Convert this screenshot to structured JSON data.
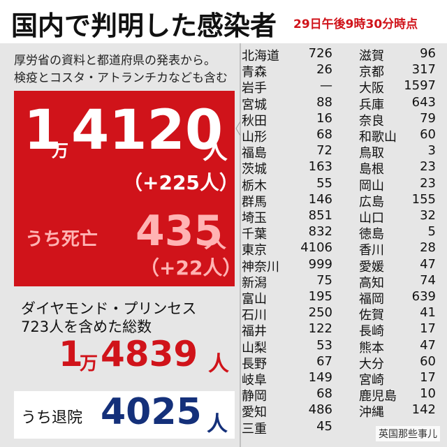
{
  "header": {
    "title": "国内で判明した感染者",
    "timestamp": "29日午後9時30分時点"
  },
  "note": [
    "厚労省の資料と都道府県の発表から。",
    "検疫とコスタ・アトランチカなども含む"
  ],
  "total": {
    "parts": [
      "1",
      "万",
      "4120",
      "人"
    ],
    "change": "（+225人）"
  },
  "deaths": {
    "label": "うち死亡",
    "parts": [
      "435",
      "人"
    ],
    "change": "（+22人）"
  },
  "ship": {
    "lines": [
      "ダイヤモンド・プリンセス",
      "723人を含めた総数"
    ],
    "parts": [
      "1",
      "万",
      "4839",
      "人"
    ]
  },
  "recovered": {
    "label": "うち退院",
    "parts": [
      "4025",
      "人"
    ]
  },
  "prefectures": [
    [
      [
        "北海道",
        "726"
      ],
      [
        "青森",
        "26"
      ],
      [
        "岩手",
        "—"
      ],
      [
        "宮城",
        "88"
      ],
      [
        "秋田",
        "16"
      ],
      [
        "山形",
        "68"
      ],
      [
        "福島",
        "72"
      ],
      [
        "茨城",
        "163"
      ],
      [
        "栃木",
        "55"
      ],
      [
        "群馬",
        "146"
      ],
      [
        "埼玉",
        "851"
      ],
      [
        "千葉",
        "832"
      ],
      [
        "東京",
        "4106"
      ],
      [
        "神奈川",
        "999"
      ],
      [
        "新潟",
        "75"
      ],
      [
        "富山",
        "195"
      ],
      [
        "石川",
        "250"
      ],
      [
        "福井",
        "122"
      ],
      [
        "山梨",
        "53"
      ],
      [
        "長野",
        "67"
      ],
      [
        "岐阜",
        "149"
      ],
      [
        "静岡",
        "68"
      ],
      [
        "愛知",
        "486"
      ],
      [
        "三重",
        "45"
      ]
    ],
    [
      [
        "滋賀",
        "96"
      ],
      [
        "京都",
        "317"
      ],
      [
        "大阪",
        "1597"
      ],
      [
        "兵庫",
        "643"
      ],
      [
        "奈良",
        "79"
      ],
      [
        "和歌山",
        "60"
      ],
      [
        "鳥取",
        "3"
      ],
      [
        "島根",
        "23"
      ],
      [
        "岡山",
        "23"
      ],
      [
        "広島",
        "155"
      ],
      [
        "山口",
        "32"
      ],
      [
        "徳島",
        "5"
      ],
      [
        "香川",
        "28"
      ],
      [
        "愛媛",
        "47"
      ],
      [
        "高知",
        "74"
      ],
      [
        "福岡",
        "639"
      ],
      [
        "佐賀",
        "41"
      ],
      [
        "長崎",
        "17"
      ],
      [
        "熊本",
        "47"
      ],
      [
        "大分",
        "60"
      ],
      [
        "宮崎",
        "17"
      ],
      [
        "鹿児島",
        "10"
      ],
      [
        "沖縄",
        "142"
      ]
    ]
  ],
  "watermark": "英国那些事儿"
}
